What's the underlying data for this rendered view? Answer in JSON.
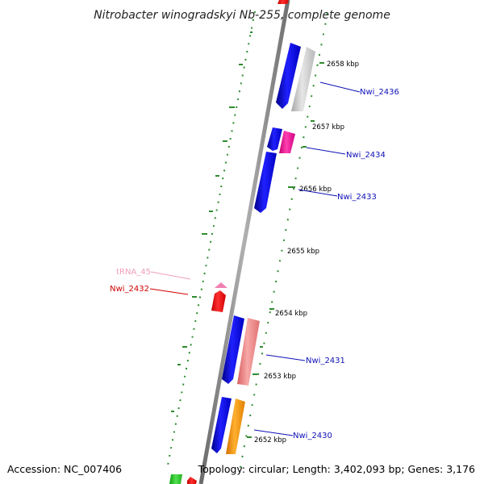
{
  "title": "Nitrobacter winogradskyi Nb-255, complete genome",
  "footer": {
    "accession": "Accession: NC_007406",
    "summary": "Topology: circular; Length: 3,402,093 bp; Genes: 3,176"
  },
  "ticks": [
    "2658 kbp",
    "2657 kbp",
    "2656 kbp",
    "2655 kbp",
    "2654 kbp",
    "2653 kbp",
    "2652 kbp"
  ],
  "genes": {
    "nwi_2436": "Nwi_2436",
    "nwi_2434": "Nwi_2434",
    "nwi_2433": "Nwi_2433",
    "nwi_2432": "Nwi_2432",
    "trna_45": "tRNA_45",
    "nwi_2431": "Nwi_2431",
    "nwi_2430": "Nwi_2430"
  },
  "colors": {
    "cds": "#0000ee",
    "cds_gray": "#c0c0c0",
    "cds_magenta": "#ff1493",
    "cds_red": "#ff0000",
    "cds_salmon": "#f08080",
    "cds_orange": "#ff9900",
    "trna": "#f080b0",
    "gc_skew": "#2e8b2e",
    "backbone": "#888888"
  }
}
